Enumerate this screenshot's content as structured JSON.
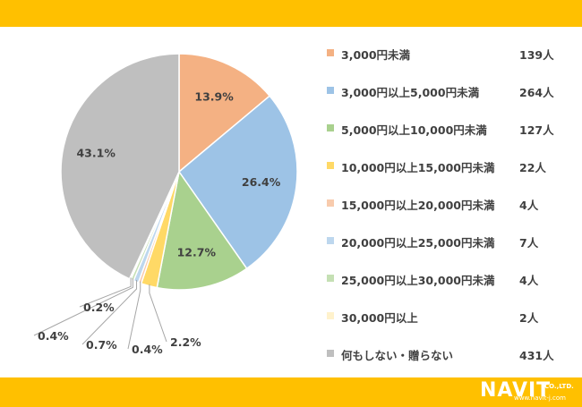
{
  "chart_data": {
    "type": "pie",
    "categories": [
      "3,000円未満",
      "3,000円以上5,000円未満",
      "5,000円以上10,000円未満",
      "10,000円以上15,000円未満",
      "15,000円以上20,000円未満",
      "20,000円以上25,000円未満",
      "25,000円以上30,000円未満",
      "30,000円以上",
      "何もしない・贈らない"
    ],
    "counts": [
      "139人",
      "264人",
      "127人",
      "22人",
      "4人",
      "7人",
      "4人",
      "2人",
      "431人"
    ],
    "values": [
      139,
      264,
      127,
      22,
      4,
      7,
      4,
      2,
      431
    ],
    "percent_labels": [
      "13.9%",
      "26.4%",
      "12.7%",
      "2.2%",
      "0.4%",
      "0.7%",
      "0.4%",
      "0.2%",
      "43.1%"
    ],
    "colors": [
      "#F4B183",
      "#9DC3E6",
      "#A9D18E",
      "#FFD966",
      "#F8CBAD",
      "#BDD7EE",
      "#C5E0B4",
      "#FFF2CC",
      "#BFBFBF"
    ],
    "legend_position": "right",
    "start": "12 o'clock, clockwise"
  },
  "logo": {
    "text": "NAVIT",
    "suffix": "CO.,LTD.",
    "url": "www.navit-j.com"
  }
}
